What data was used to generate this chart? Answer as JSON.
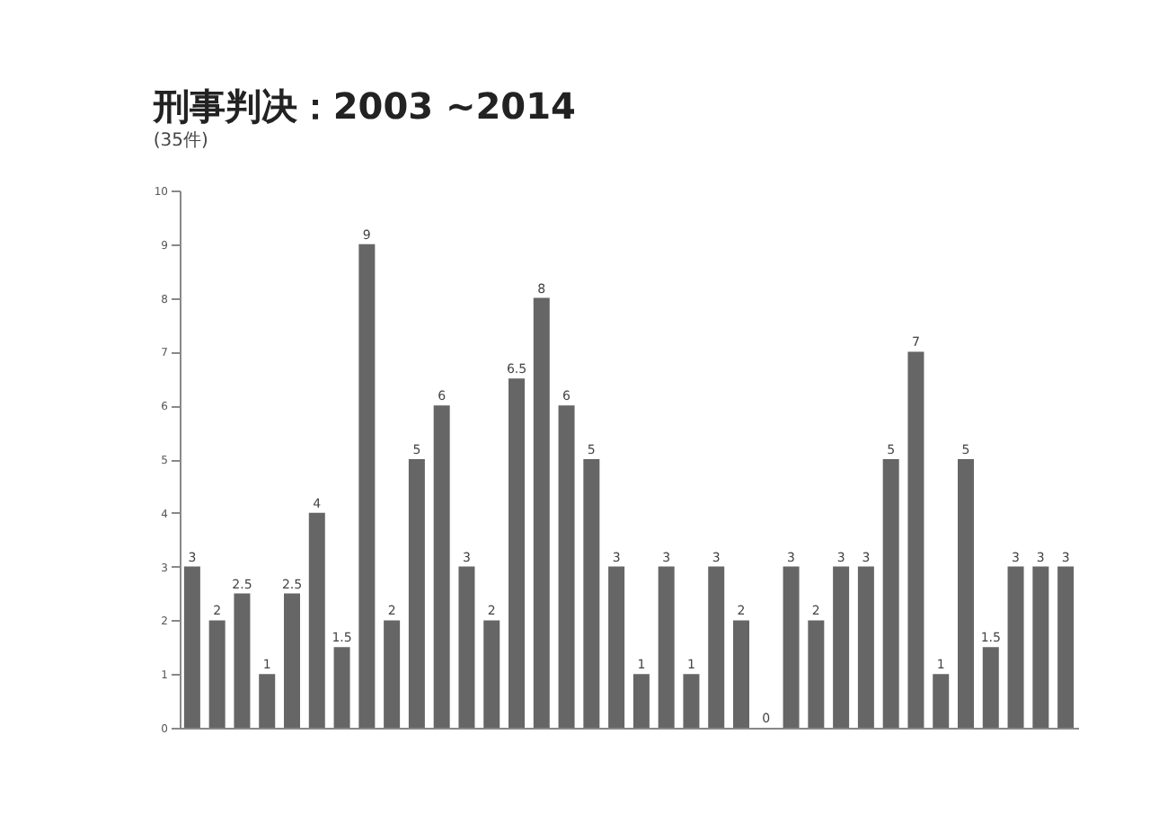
{
  "chart_data": {
    "type": "bar",
    "title": "刑事判决：2003 ~2014",
    "subtitle": "(35件)",
    "categories": [
      null,
      null,
      null,
      null,
      null,
      null,
      null,
      null,
      null,
      null,
      null,
      null,
      null,
      null,
      null,
      null,
      null,
      null,
      null,
      null,
      null,
      null,
      null,
      null,
      null,
      null,
      null,
      null,
      null,
      null,
      null,
      null,
      null,
      null,
      null,
      null
    ],
    "values": [
      3,
      2,
      2.5,
      1,
      2.5,
      4,
      1.5,
      9,
      2,
      5,
      6,
      3,
      2,
      6.5,
      8,
      6,
      5,
      3,
      1,
      3,
      1,
      3,
      2,
      0,
      3,
      2,
      3,
      3,
      5,
      7,
      1,
      5,
      1.5,
      3,
      3,
      3
    ],
    "color": "#666666",
    "ylim": [
      0,
      10
    ],
    "yticks": [
      0,
      1,
      2,
      3,
      4,
      5,
      6,
      7,
      8,
      9,
      10
    ],
    "grid": false,
    "data_labels": true
  }
}
